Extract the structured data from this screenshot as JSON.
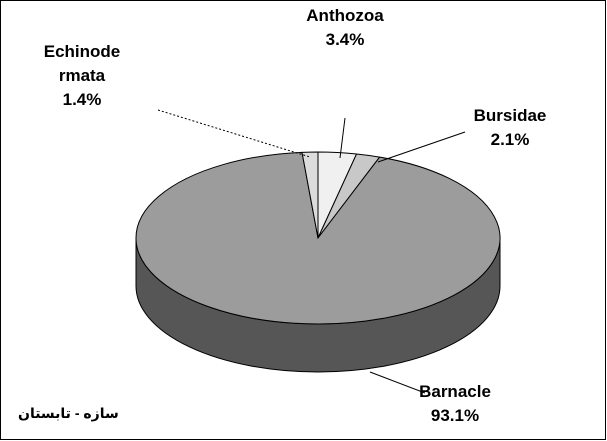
{
  "chart_data": {
    "type": "pie3d",
    "categories": [
      "Anthozoa",
      "Bursidae",
      "Barnacle",
      "Echinode\nrmata"
    ],
    "values": [
      3.4,
      2.1,
      93.1,
      1.4
    ],
    "value_labels": [
      "3.4%",
      "2.1%",
      "93.1%",
      "1.4%"
    ],
    "colors": [
      "#f0f0f0",
      "#c8c8c8",
      "#9c9c9c",
      "#dcdcdc"
    ],
    "footnote": "سازه - تابستان"
  }
}
